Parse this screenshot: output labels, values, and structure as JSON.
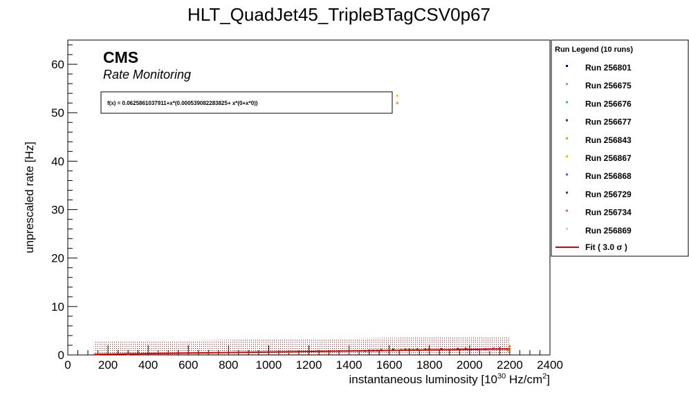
{
  "chart_data": {
    "type": "scatter",
    "title": "HLT_QuadJet45_TripleBTagCSV0p67",
    "xlabel_main": "instantaneous luminosity [10",
    "xlabel_exp": "30",
    "xlabel_mid": " Hz/cm",
    "xlabel_exp2": "2",
    "xlabel_end": "]",
    "ylabel": "unprescaled rate [Hz]",
    "xlim": [
      0,
      2400
    ],
    "ylim": [
      0,
      65
    ],
    "x_ticks": [
      0,
      200,
      400,
      600,
      800,
      1000,
      1200,
      1400,
      1600,
      1800,
      2000,
      2200,
      2400
    ],
    "y_ticks": [
      0,
      10,
      20,
      30,
      40,
      50,
      60
    ],
    "cms_label": "CMS",
    "cms_sublabel": "Rate Monitoring",
    "fit_formula": "f(x) = 0.0625861037911+x*(0.000539082283825+ x*(0+x*0))",
    "fit": {
      "a": 0.0625861037911,
      "b": 0.000539082283825,
      "x_range": [
        130,
        2200
      ],
      "sigma_band": 3.0,
      "band_halfwidth": 1.3
    },
    "legend": {
      "title": "Run Legend (10 runs)",
      "entries": [
        {
          "label": "Run 256801",
          "color": "#00007f"
        },
        {
          "label": "Run 256675",
          "color": "#6aaed6"
        },
        {
          "label": "Run 256676",
          "color": "#33cc55"
        },
        {
          "label": "Run 256677",
          "color": "#006400"
        },
        {
          "label": "Run 256843",
          "color": "#ff8c1a"
        },
        {
          "label": "Run 256867",
          "color": "#ffc000"
        },
        {
          "label": "Run 256868",
          "color": "#9b30ff"
        },
        {
          "label": "Run 256729",
          "color": "#7f2b00"
        },
        {
          "label": "Run 256734",
          "color": "#e0607e"
        },
        {
          "label": "Run 256869",
          "color": "#cccccc"
        }
      ],
      "fit_label": "Fit ( 3.0  σ )",
      "fit_color": "#dd0000"
    },
    "series": [
      {
        "name": "Run 256801",
        "color": "#00007f",
        "x": [
          1500,
          1560,
          1620
        ],
        "y": [
          0.9,
          1.0,
          1.1
        ]
      },
      {
        "name": "Run 256675",
        "color": "#6aaed6",
        "x": [
          1480,
          1520,
          1560
        ],
        "y": [
          0.8,
          0.9,
          0.95
        ]
      },
      {
        "name": "Run 256676",
        "color": "#33cc55",
        "x": [
          1540,
          1600,
          1660,
          1720
        ],
        "y": [
          0.9,
          1.0,
          1.05,
          1.1
        ]
      },
      {
        "name": "Run 256677",
        "color": "#006400",
        "x": [
          1560,
          1620,
          1680,
          1740,
          1800
        ],
        "y": [
          1.0,
          1.05,
          1.1,
          1.15,
          1.2
        ]
      },
      {
        "name": "Run 256843",
        "color": "#ff8c1a",
        "x": [
          150,
          300,
          500,
          700,
          900,
          1100,
          1300,
          1450,
          1800,
          2150,
          2190,
          2200,
          1640
        ],
        "y": [
          0.1,
          0.2,
          0.3,
          0.4,
          0.5,
          0.6,
          0.7,
          0.8,
          1.0,
          1.2,
          0.9,
          1.5,
          52.0
        ]
      },
      {
        "name": "Run 256867",
        "color": "#ffc000",
        "x": [
          2100,
          2150,
          2200,
          1640
        ],
        "y": [
          1.1,
          1.2,
          1.4,
          53.5
        ]
      },
      {
        "name": "Run 256868",
        "color": "#9b30ff",
        "x": [
          2000,
          2040,
          2080,
          2120,
          2150
        ],
        "y": [
          1.0,
          1.1,
          1.2,
          1.3,
          1.4
        ]
      },
      {
        "name": "Run 256729",
        "color": "#7f2b00",
        "x": [
          1700,
          1780,
          1860,
          1940,
          1980
        ],
        "y": [
          1.1,
          1.15,
          1.2,
          1.25,
          1.3
        ]
      },
      {
        "name": "Run 256734",
        "color": "#e0607e",
        "x": [
          1480,
          1500,
          1520,
          1540
        ],
        "y": [
          0.8,
          0.85,
          0.9,
          0.9
        ]
      },
      {
        "name": "Run 256869",
        "color": "#cccccc",
        "x": [
          2100,
          2140,
          2180
        ],
        "y": [
          1.0,
          1.1,
          1.2
        ]
      }
    ]
  }
}
